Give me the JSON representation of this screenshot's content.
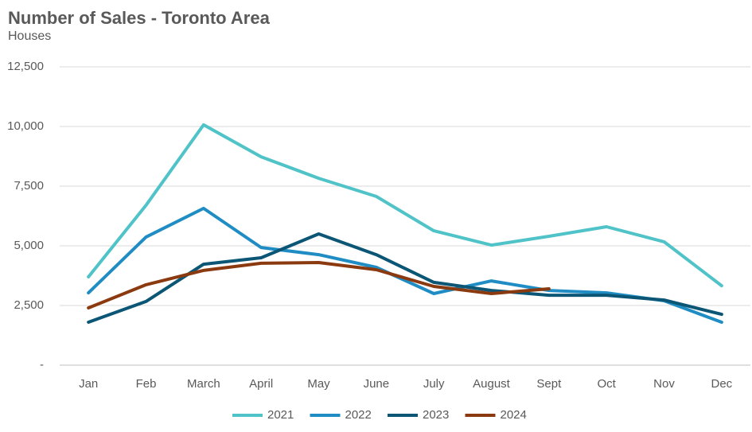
{
  "chart_data": {
    "type": "line",
    "title": "Number of Sales - Toronto Area",
    "subtitle": "Houses",
    "categories": [
      "Jan",
      "Feb",
      "March",
      "April",
      "May",
      "June",
      "July",
      "August",
      "Sept",
      "Oct",
      "Nov",
      "Dec"
    ],
    "series": [
      {
        "name": "2021",
        "color": "#4fc3c8",
        "values": [
          3700,
          6700,
          10070,
          8730,
          7830,
          7070,
          5630,
          5030,
          5400,
          5800,
          5170,
          3330
        ]
      },
      {
        "name": "2022",
        "color": "#1f8dc4",
        "values": [
          3030,
          5370,
          6570,
          4930,
          4630,
          4100,
          3000,
          3530,
          3130,
          3030,
          2700,
          1800
        ]
      },
      {
        "name": "2023",
        "color": "#0b5575",
        "values": [
          1800,
          2670,
          4230,
          4500,
          5500,
          4630,
          3470,
          3130,
          2930,
          2930,
          2730,
          2130
        ]
      },
      {
        "name": "2024",
        "color": "#8b3a10",
        "values": [
          2400,
          3370,
          3970,
          4270,
          4300,
          4000,
          3300,
          3000,
          3200,
          null,
          null,
          null
        ]
      }
    ],
    "ylim": [
      0,
      12500
    ],
    "yticks": [
      {
        "value": 0,
        "label": "-"
      },
      {
        "value": 2500,
        "label": "2,500"
      },
      {
        "value": 5000,
        "label": "5,000"
      },
      {
        "value": 7500,
        "label": "7,500"
      },
      {
        "value": 10000,
        "label": "10,000"
      },
      {
        "value": 12500,
        "label": "12,500"
      }
    ],
    "grid": true,
    "legend": "bottom"
  }
}
